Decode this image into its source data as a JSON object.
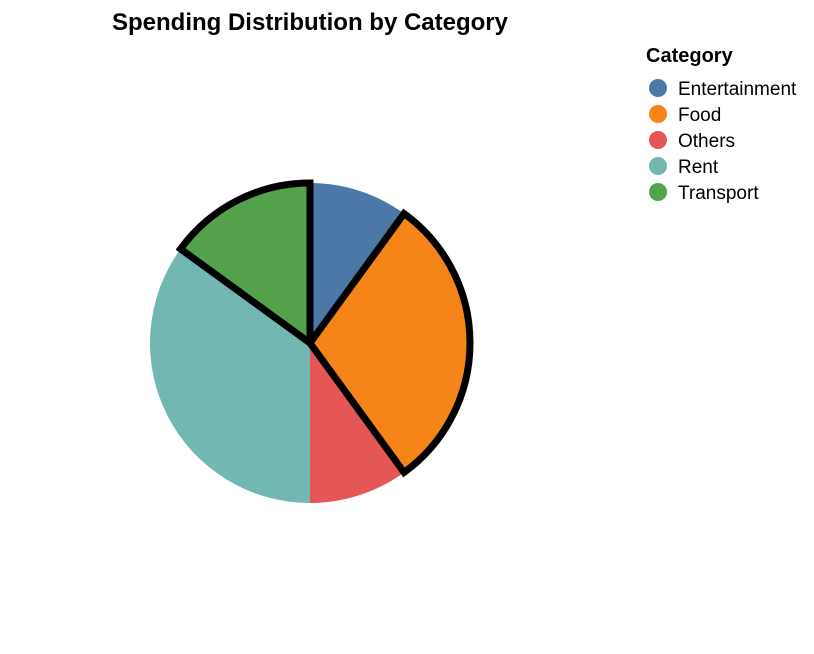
{
  "chart_data": {
    "type": "pie",
    "title": "Spending Distribution by Category",
    "legend": {
      "title": "Category",
      "placement": "top-right"
    },
    "categories": [
      "Entertainment",
      "Food",
      "Others",
      "Rent",
      "Transport"
    ],
    "values": [
      10,
      30,
      10,
      35,
      15
    ],
    "colors": [
      "#4c78a8",
      "#f58518",
      "#e45756",
      "#72b7b2",
      "#54a24b"
    ],
    "highlighted": [
      "Food",
      "Transport"
    ],
    "highlight_stroke": "#000000"
  }
}
